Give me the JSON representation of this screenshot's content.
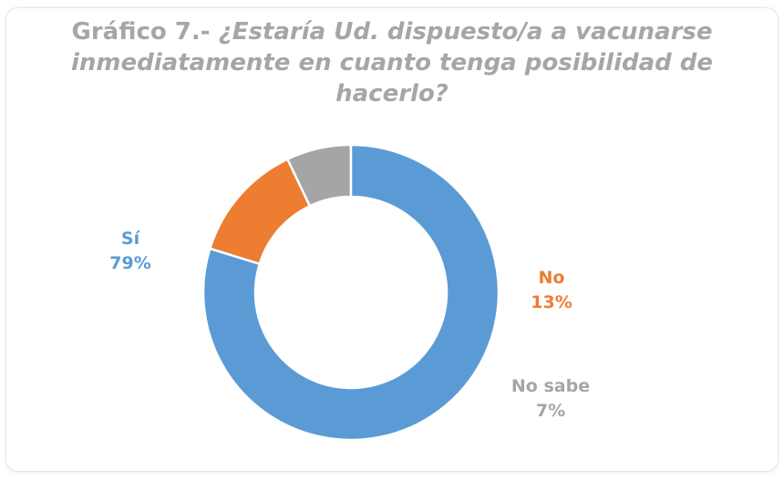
{
  "chart_data": {
    "type": "pie",
    "variant": "donut",
    "title_part1": "Gráfico 7.-",
    "title_part2": " ¿Estaría Ud. dispuesto/a a vacunarse inmediatamente en cuanto tenga posibilidad de hacerlo?",
    "categories": [
      "Sí",
      "No",
      "No sabe"
    ],
    "values": [
      79,
      13,
      7
    ],
    "value_labels": [
      "79%",
      "13%",
      "7%"
    ],
    "colors": [
      "#5b9bd5",
      "#ed7d31",
      "#a5a5a5"
    ],
    "legend": "none (labels placed beside slices)"
  }
}
